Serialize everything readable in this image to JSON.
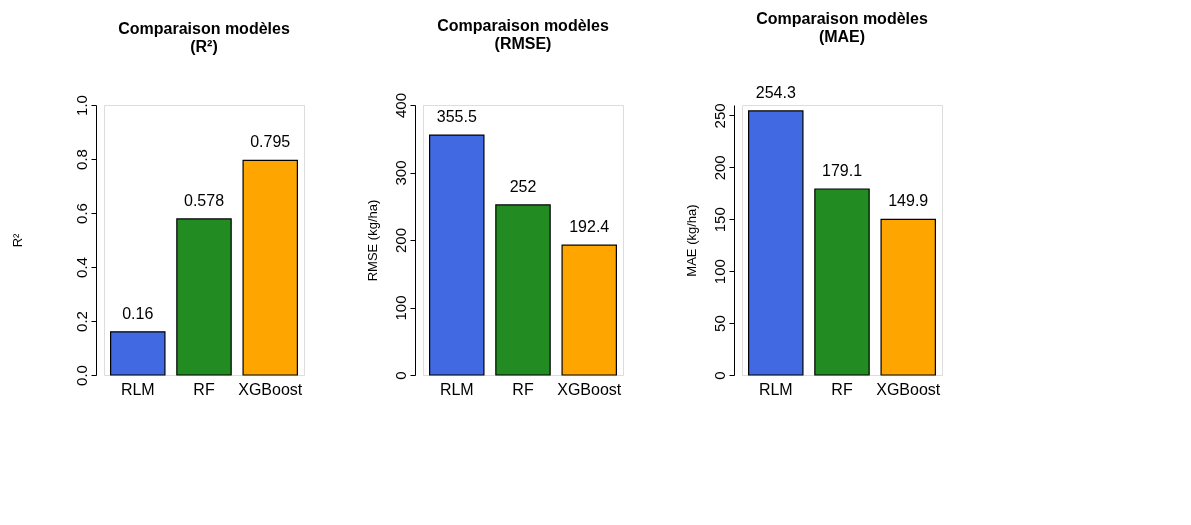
{
  "chart_data": [
    {
      "type": "bar",
      "title": "Comparaison modèles\n(R²)",
      "ylabel": "R²",
      "categories": [
        "RLM",
        "RF",
        "XGBoost"
      ],
      "values": [
        0.16,
        0.578,
        0.795
      ],
      "colors": [
        "#4169e1",
        "#228b22",
        "#ffa500"
      ],
      "ylim": [
        0,
        1.0
      ],
      "yticks": [
        {
          "value": 0,
          "label": "0.0"
        },
        {
          "value": 0.2,
          "label": "0.2"
        },
        {
          "value": 0.4,
          "label": "0.4"
        },
        {
          "value": 0.6,
          "label": "0.6"
        },
        {
          "value": 0.8,
          "label": "0.8"
        },
        {
          "value": 1.0,
          "label": "1.0"
        }
      ],
      "data_labels": true,
      "grid": false
    },
    {
      "type": "bar",
      "title": "Comparaison modèles\n(RMSE)",
      "ylabel": "RMSE (kg/ha)",
      "categories": [
        "RLM",
        "RF",
        "XGBoost"
      ],
      "values": [
        355.5,
        252,
        192.4
      ],
      "colors": [
        "#4169e1",
        "#228b22",
        "#ffa500"
      ],
      "ylim": [
        0,
        400
      ],
      "yticks": [
        0,
        100,
        200,
        300,
        400
      ],
      "data_labels": true,
      "grid": false
    },
    {
      "type": "bar",
      "title": "Comparaison modèles\n(MAE)",
      "ylabel": "MAE (kg/ha)",
      "categories": [
        "RLM",
        "RF",
        "XGBoost"
      ],
      "values": [
        254.3,
        179.1,
        149.9
      ],
      "colors": [
        "#4169e1",
        "#228b22",
        "#ffa500"
      ],
      "ylim": [
        0,
        260
      ],
      "yticks": [
        0,
        50,
        100,
        150,
        200,
        250
      ],
      "data_labels": true,
      "grid": false
    }
  ]
}
